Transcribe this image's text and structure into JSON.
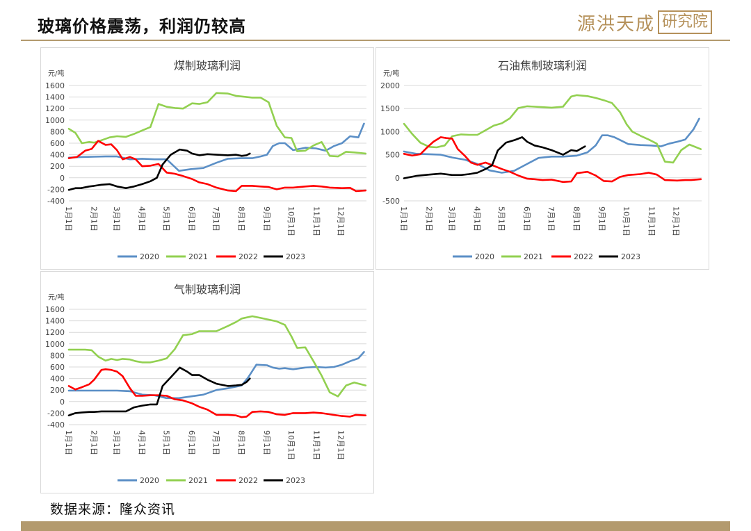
{
  "header": {
    "title": "玻璃价格震荡，利润仍较高",
    "logo_text": "源洪天成",
    "logo_box": "研究院"
  },
  "footer": {
    "source": "数据来源：隆众资讯"
  },
  "colors": {
    "accent": "#b39a6e",
    "2020": "#5b8fc6",
    "2021": "#92d050",
    "2022": "#ff0000",
    "2023": "#000000"
  },
  "chart_data": [
    {
      "type": "line",
      "title": "煤制玻璃利润",
      "unit": "元/吨",
      "ylim": [
        -400,
        1600
      ],
      "yticks": [
        -400,
        -200,
        0,
        200,
        400,
        600,
        800,
        1000,
        1200,
        1400,
        1600
      ],
      "xticks": [
        "1月1日",
        "2月1日",
        "3月1日",
        "4月1日",
        "5月1日",
        "6月1日",
        "7月1日",
        "8月1日",
        "9月1日",
        "10月1日",
        "11月1日",
        "12月1日"
      ],
      "x_days": 365,
      "grid": true,
      "legend": "bottom",
      "series": [
        {
          "name": "2020",
          "color": "#5b8fc6",
          "x": [
            0,
            15,
            31,
            45,
            59,
            75,
            90,
            105,
            120,
            135,
            150,
            165,
            181,
            195,
            212,
            225,
            235,
            243,
            250,
            258,
            265,
            275,
            290,
            303,
            315,
            325,
            335,
            345,
            355,
            362
          ],
          "values": [
            350,
            360,
            365,
            370,
            370,
            320,
            330,
            320,
            320,
            120,
            150,
            170,
            260,
            330,
            340,
            340,
            370,
            400,
            550,
            600,
            600,
            480,
            520,
            510,
            470,
            550,
            600,
            720,
            700,
            940
          ]
        },
        {
          "name": "2021",
          "color": "#92d050",
          "x": [
            0,
            8,
            16,
            25,
            31,
            40,
            50,
            59,
            70,
            80,
            90,
            100,
            110,
            120,
            130,
            140,
            151,
            160,
            170,
            181,
            195,
            205,
            212,
            225,
            235,
            245,
            255,
            265,
            273,
            280,
            290,
            300,
            310,
            320,
            330,
            340,
            350,
            364
          ],
          "values": [
            850,
            780,
            600,
            620,
            610,
            650,
            700,
            720,
            710,
            760,
            820,
            880,
            1280,
            1230,
            1210,
            1200,
            1290,
            1280,
            1310,
            1470,
            1460,
            1420,
            1410,
            1390,
            1390,
            1310,
            900,
            700,
            690,
            460,
            470,
            560,
            620,
            380,
            370,
            450,
            440,
            420
          ]
        },
        {
          "name": "2022",
          "color": "#ff0000",
          "x": [
            0,
            10,
            20,
            28,
            36,
            45,
            52,
            59,
            66,
            75,
            82,
            90,
            100,
            110,
            120,
            130,
            140,
            151,
            160,
            170,
            181,
            195,
            205,
            212,
            225,
            235,
            245,
            255,
            265,
            275,
            290,
            300,
            310,
            320,
            335,
            345,
            352,
            364
          ],
          "values": [
            340,
            360,
            470,
            500,
            640,
            570,
            580,
            480,
            320,
            360,
            320,
            200,
            210,
            240,
            90,
            70,
            30,
            -20,
            -80,
            -110,
            -170,
            -220,
            -230,
            -140,
            -140,
            -150,
            -160,
            -200,
            -170,
            -170,
            -150,
            -140,
            -150,
            -170,
            -180,
            -175,
            -230,
            -220
          ]
        },
        {
          "name": "2023",
          "color": "#000000",
          "x": [
            0,
            8,
            15,
            25,
            31,
            40,
            50,
            59,
            70,
            80,
            90,
            100,
            108,
            115,
            125,
            136,
            145,
            151,
            160,
            170,
            181,
            195,
            205,
            212,
            218,
            222
          ],
          "values": [
            -210,
            -180,
            -180,
            -150,
            -140,
            -120,
            -110,
            -150,
            -180,
            -150,
            -110,
            -60,
            0,
            230,
            400,
            490,
            470,
            420,
            390,
            410,
            400,
            390,
            400,
            380,
            390,
            420
          ]
        }
      ]
    },
    {
      "type": "line",
      "title": "石油焦制玻璃利润",
      "unit": "元/吨",
      "ylim": [
        -500,
        2000
      ],
      "yticks": [
        -500,
        0,
        500,
        1000,
        1500,
        2000
      ],
      "xticks": [
        "1月1日",
        "2月1日",
        "3月1日",
        "4月1日",
        "5月1日",
        "6月1日",
        "7月1日",
        "8月1日",
        "9月1日",
        "10月1日",
        "11月1日",
        "12月1日"
      ],
      "x_days": 365,
      "grid": true,
      "legend": "bottom",
      "series": [
        {
          "name": "2020",
          "color": "#5b8fc6",
          "x": [
            0,
            15,
            31,
            45,
            59,
            75,
            90,
            105,
            120,
            135,
            150,
            165,
            181,
            195,
            212,
            225,
            235,
            243,
            250,
            258,
            265,
            275,
            290,
            303,
            315,
            325,
            335,
            345,
            355,
            362
          ],
          "values": [
            570,
            520,
            510,
            500,
            440,
            390,
            300,
            160,
            110,
            150,
            290,
            430,
            460,
            460,
            480,
            550,
            700,
            920,
            920,
            880,
            820,
            730,
            710,
            700,
            680,
            740,
            780,
            830,
            1050,
            1280
          ]
        },
        {
          "name": "2021",
          "color": "#92d050",
          "x": [
            0,
            10,
            20,
            31,
            40,
            50,
            59,
            70,
            80,
            90,
            100,
            110,
            120,
            130,
            140,
            151,
            160,
            170,
            181,
            195,
            205,
            212,
            225,
            235,
            245,
            255,
            265,
            273,
            280,
            290,
            300,
            310,
            320,
            330,
            340,
            350,
            364
          ],
          "values": [
            1170,
            950,
            760,
            670,
            660,
            700,
            900,
            940,
            930,
            930,
            1030,
            1130,
            1180,
            1290,
            1510,
            1550,
            1540,
            1530,
            1520,
            1540,
            1760,
            1790,
            1770,
            1730,
            1680,
            1620,
            1420,
            1160,
            1000,
            910,
            830,
            740,
            350,
            330,
            600,
            720,
            620
          ]
        },
        {
          "name": "2022",
          "color": "#ff0000",
          "x": [
            0,
            10,
            20,
            28,
            36,
            45,
            52,
            59,
            66,
            75,
            82,
            90,
            100,
            110,
            120,
            130,
            140,
            151,
            160,
            170,
            181,
            195,
            205,
            212,
            225,
            235,
            245,
            255,
            265,
            275,
            290,
            300,
            310,
            320,
            335,
            345,
            352,
            364
          ],
          "values": [
            520,
            480,
            510,
            650,
            780,
            880,
            860,
            850,
            620,
            470,
            330,
            280,
            330,
            260,
            190,
            130,
            50,
            -20,
            -30,
            -50,
            -40,
            -90,
            -80,
            100,
            130,
            50,
            -70,
            -80,
            20,
            60,
            80,
            110,
            70,
            -50,
            -60,
            -50,
            -50,
            -30
          ]
        },
        {
          "name": "2023",
          "color": "#000000",
          "x": [
            0,
            15,
            31,
            45,
            59,
            70,
            80,
            90,
            100,
            108,
            115,
            125,
            136,
            145,
            151,
            160,
            170,
            181,
            195,
            205,
            212,
            218,
            222
          ],
          "values": [
            -10,
            40,
            70,
            90,
            60,
            60,
            80,
            110,
            190,
            270,
            590,
            760,
            820,
            880,
            780,
            700,
            660,
            600,
            500,
            600,
            580,
            640,
            680
          ]
        }
      ]
    },
    {
      "type": "line",
      "title": "气制玻璃利润",
      "unit": "元/吨",
      "ylim": [
        -400,
        1600
      ],
      "yticks": [
        -400,
        -200,
        0,
        200,
        400,
        600,
        800,
        1000,
        1200,
        1400,
        1600
      ],
      "xticks": [
        "1月1日",
        "2月1日",
        "3月1日",
        "4月1日",
        "5月1日",
        "6月1日",
        "7月1日",
        "8月1日",
        "9月1日",
        "10月1日",
        "11月1日",
        "12月1日"
      ],
      "x_days": 365,
      "grid": true,
      "legend": "bottom",
      "series": [
        {
          "name": "2020",
          "color": "#5b8fc6",
          "x": [
            0,
            15,
            31,
            45,
            59,
            75,
            90,
            105,
            120,
            135,
            150,
            165,
            181,
            195,
            212,
            220,
            230,
            243,
            250,
            258,
            265,
            275,
            290,
            303,
            315,
            325,
            335,
            345,
            355,
            362
          ],
          "values": [
            190,
            190,
            190,
            190,
            190,
            180,
            120,
            110,
            60,
            60,
            90,
            120,
            200,
            230,
            280,
            420,
            640,
            630,
            590,
            570,
            580,
            560,
            590,
            600,
            590,
            600,
            640,
            700,
            750,
            860
          ]
        },
        {
          "name": "2021",
          "color": "#92d050",
          "x": [
            0,
            10,
            20,
            28,
            36,
            45,
            52,
            59,
            66,
            75,
            82,
            90,
            100,
            110,
            120,
            130,
            140,
            151,
            160,
            170,
            181,
            195,
            205,
            212,
            225,
            235,
            245,
            255,
            265,
            273,
            280,
            290,
            300,
            310,
            320,
            330,
            340,
            350,
            364
          ],
          "values": [
            900,
            900,
            900,
            890,
            780,
            710,
            740,
            720,
            740,
            730,
            700,
            680,
            680,
            710,
            750,
            910,
            1150,
            1170,
            1220,
            1220,
            1220,
            1310,
            1380,
            1440,
            1480,
            1450,
            1420,
            1390,
            1330,
            1130,
            930,
            940,
            700,
            450,
            160,
            90,
            280,
            330,
            280
          ]
        },
        {
          "name": "2022",
          "color": "#ff0000",
          "x": [
            0,
            8,
            16,
            25,
            31,
            40,
            45,
            52,
            59,
            66,
            75,
            82,
            90,
            100,
            110,
            120,
            130,
            140,
            151,
            160,
            170,
            181,
            195,
            205,
            212,
            218,
            225,
            235,
            245,
            255,
            265,
            275,
            290,
            300,
            310,
            320,
            335,
            345,
            352,
            364
          ],
          "values": [
            270,
            210,
            250,
            300,
            380,
            550,
            560,
            550,
            520,
            440,
            230,
            100,
            100,
            110,
            110,
            100,
            40,
            20,
            -30,
            -90,
            -140,
            -230,
            -230,
            -240,
            -270,
            -260,
            -180,
            -170,
            -180,
            -220,
            -230,
            -200,
            -200,
            -190,
            -200,
            -220,
            -250,
            -260,
            -230,
            -240
          ]
        },
        {
          "name": "2023",
          "color": "#000000",
          "x": [
            0,
            8,
            15,
            25,
            31,
            40,
            50,
            59,
            70,
            80,
            90,
            100,
            108,
            115,
            125,
            136,
            145,
            151,
            160,
            170,
            181,
            195,
            205,
            212,
            218,
            222
          ],
          "values": [
            -240,
            -200,
            -190,
            -180,
            -180,
            -170,
            -170,
            -170,
            -170,
            -100,
            -70,
            -50,
            -50,
            270,
            420,
            590,
            520,
            460,
            460,
            380,
            310,
            270,
            280,
            290,
            340,
            400
          ]
        }
      ]
    }
  ]
}
